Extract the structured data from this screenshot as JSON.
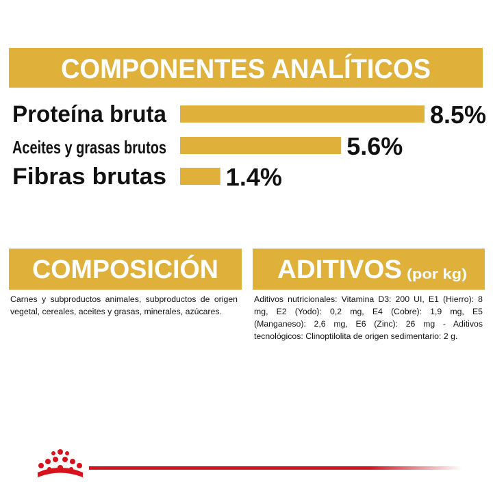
{
  "analytics": {
    "title": "COMPONENTES ANALÍTICOS",
    "categories": [
      "Proteína bruta",
      "Aceites y grasas brutos",
      "Fibras brutas"
    ],
    "values": [
      8.5,
      5.6,
      1.4
    ],
    "value_labels": [
      "8.5%",
      "5.6%",
      "1.4%"
    ],
    "color": "#dfb13a"
  },
  "composition": {
    "title": "COMPOSICIÓN",
    "text": "Carnes y subproductos animales, subproductos de origen vegetal, cereales, aceites y grasas, minerales, azúcares."
  },
  "additives": {
    "title": "ADITIVOS",
    "subtitle": "(por kg)",
    "text": "Aditivos nutricionales: Vitamina D3: 200 UI, E1 (Hierro): 8 mg, E2 (Yodo): 0,2 mg, E4 (Cobre): 1,9 mg, E5 (Manganeso): 2,6 mg, E6 (Zinc): 26 mg - Aditivos tecnológicos: Clinoptilolita de origen sedimentario: 2 g."
  }
}
